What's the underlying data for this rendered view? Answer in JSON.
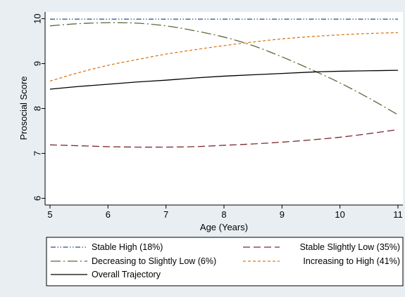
{
  "chart_data": {
    "type": "line",
    "title": "",
    "xlabel": "Age (Years)",
    "ylabel": "Prosocial Score",
    "xlim": [
      5,
      11
    ],
    "ylim": [
      5.85,
      10.15
    ],
    "x_ticks": [
      "5",
      "6",
      "7",
      "8",
      "9",
      "10",
      "11"
    ],
    "y_ticks": [
      "6",
      "7",
      "8",
      "9",
      "10"
    ],
    "grid": false,
    "legend_position": "bottom",
    "x": [
      5,
      5.5,
      6,
      6.5,
      7,
      7.5,
      8,
      8.5,
      9,
      9.5,
      10,
      10.5,
      11
    ],
    "series": [
      {
        "name": "Stable High (18%)",
        "color": "#2f4d8c",
        "dash": "dash-dot-dot",
        "values": [
          9.99,
          9.99,
          9.99,
          9.99,
          9.99,
          9.99,
          9.99,
          9.99,
          9.99,
          9.99,
          9.99,
          9.99,
          9.99
        ]
      },
      {
        "name": "Stable Slightly Low (35%)",
        "color": "#7a2a32",
        "dash": "long-dash",
        "values": [
          7.19,
          7.17,
          7.15,
          7.14,
          7.14,
          7.15,
          7.18,
          7.21,
          7.25,
          7.3,
          7.36,
          7.44,
          7.53
        ]
      },
      {
        "name": "Decreasing to Slightly Low (6%)",
        "color": "#596b3c",
        "dash": "long-dash-dot",
        "values": [
          9.84,
          9.89,
          9.91,
          9.9,
          9.84,
          9.73,
          9.59,
          9.4,
          9.15,
          8.87,
          8.57,
          8.23,
          7.86
        ]
      },
      {
        "name": "Increasing to High (41%)",
        "color": "#d97a1c",
        "dash": "short-dash",
        "values": [
          8.61,
          8.8,
          8.96,
          9.09,
          9.21,
          9.31,
          9.4,
          9.48,
          9.55,
          9.6,
          9.64,
          9.67,
          9.69
        ]
      },
      {
        "name": "Overall Trajectory",
        "color": "#000000",
        "dash": "solid",
        "values": [
          8.43,
          8.49,
          8.54,
          8.59,
          8.63,
          8.68,
          8.72,
          8.75,
          8.78,
          8.81,
          8.83,
          8.84,
          8.85
        ]
      }
    ]
  }
}
